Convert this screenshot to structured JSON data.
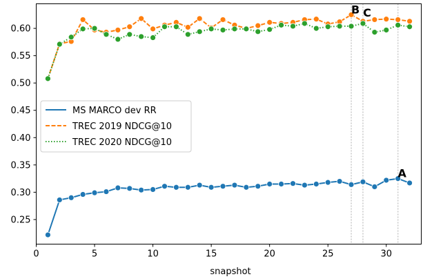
{
  "chart_data": {
    "type": "line",
    "xlabel": "snapshot",
    "ylabel": "",
    "xlim": [
      0,
      33
    ],
    "ylim": [
      0.205,
      0.645
    ],
    "x_ticks": [
      0,
      5,
      10,
      15,
      20,
      25,
      30
    ],
    "y_ticks": [
      0.25,
      0.3,
      0.35,
      0.4,
      0.45,
      0.5,
      0.55,
      0.6
    ],
    "x": [
      1,
      2,
      3,
      4,
      5,
      6,
      7,
      8,
      9,
      10,
      11,
      12,
      13,
      14,
      15,
      16,
      17,
      18,
      19,
      20,
      21,
      22,
      23,
      24,
      25,
      26,
      27,
      28,
      29,
      30,
      31,
      32
    ],
    "series": [
      {
        "name": "MS MARCO dev RR",
        "color": "#1f77b4",
        "dash": "solid",
        "values": [
          0.222,
          0.286,
          0.29,
          0.296,
          0.299,
          0.301,
          0.308,
          0.307,
          0.304,
          0.305,
          0.311,
          0.309,
          0.309,
          0.313,
          0.309,
          0.311,
          0.313,
          0.309,
          0.311,
          0.315,
          0.315,
          0.316,
          0.313,
          0.315,
          0.318,
          0.32,
          0.314,
          0.319,
          0.31,
          0.322,
          0.325,
          0.317
        ]
      },
      {
        "name": "TREC 2019 NDCG@10",
        "color": "#ff7f0e",
        "dash": "dashed",
        "values": [
          0.508,
          0.572,
          0.576,
          0.616,
          0.597,
          0.593,
          0.597,
          0.603,
          0.618,
          0.599,
          0.606,
          0.611,
          0.602,
          0.618,
          0.601,
          0.616,
          0.606,
          0.6,
          0.605,
          0.611,
          0.609,
          0.611,
          0.616,
          0.617,
          0.608,
          0.612,
          0.625,
          0.613,
          0.616,
          0.617,
          0.616,
          0.613
        ]
      },
      {
        "name": "TREC 2020 NDCG@10",
        "color": "#2ca02c",
        "dash": "dotted",
        "values": [
          0.508,
          0.571,
          0.584,
          0.599,
          0.6,
          0.589,
          0.58,
          0.589,
          0.585,
          0.583,
          0.603,
          0.603,
          0.589,
          0.594,
          0.599,
          0.597,
          0.599,
          0.599,
          0.594,
          0.598,
          0.606,
          0.604,
          0.609,
          0.6,
          0.603,
          0.604,
          0.604,
          0.609,
          0.593,
          0.597,
          0.606,
          0.603
        ]
      }
    ],
    "vlines": [
      27,
      28,
      31
    ],
    "annotations": [
      {
        "text": "B",
        "x": 27,
        "y": 0.625
      },
      {
        "text": "C",
        "x": 28,
        "y": 0.619
      },
      {
        "text": "A",
        "x": 31,
        "y": 0.325
      }
    ],
    "legend_position": "center-left",
    "grid": false
  }
}
